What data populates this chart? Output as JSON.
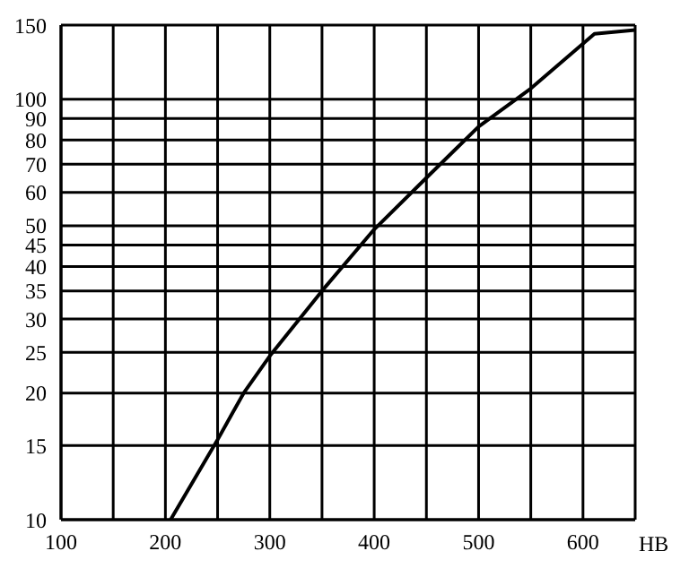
{
  "chart_data": {
    "type": "line",
    "xlabel": "HB",
    "log": "y",
    "grid": true,
    "marker": "none",
    "line_style": "solid",
    "x": [
      205,
      250,
      275,
      300,
      350,
      400,
      450,
      500,
      550,
      611,
      650
    ],
    "series": [
      {
        "color": "#000000",
        "values": [
          10,
          15.5,
          20,
          24.5,
          35,
          49,
          65,
          86,
          106,
          143,
          146
        ]
      }
    ],
    "xlim": [
      100,
      650
    ],
    "xticks": [
      100,
      {
        "value": 150,
        "label": null
      },
      200,
      {
        "value": 250,
        "label": null
      },
      300,
      {
        "value": 350,
        "label": null
      },
      400,
      {
        "value": 450,
        "label": null
      },
      500,
      {
        "value": 550,
        "label": null
      },
      600,
      {
        "value": 650,
        "label": null
      }
    ],
    "ylim": [
      10,
      150
    ],
    "yticks": [
      10,
      15,
      20,
      25,
      30,
      35,
      40,
      45,
      50,
      60,
      70,
      80,
      90,
      100,
      150
    ]
  }
}
